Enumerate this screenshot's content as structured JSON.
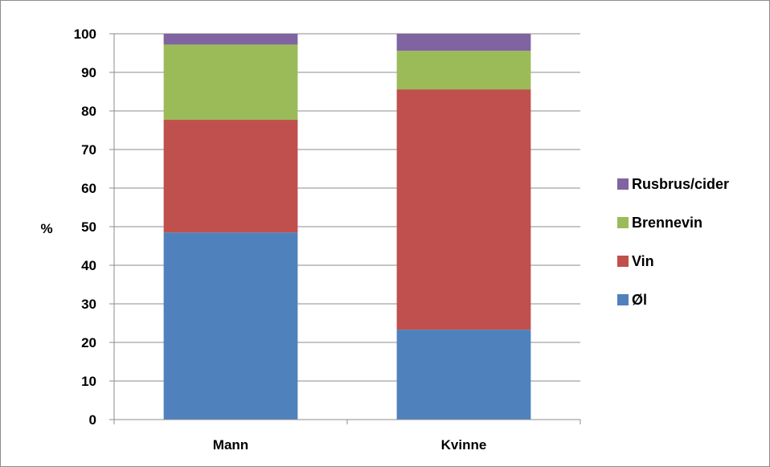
{
  "chart_data": {
    "type": "bar",
    "stacked": true,
    "categories": [
      "Mann",
      "Kvinne"
    ],
    "series": [
      {
        "name": "Øl",
        "values": [
          48.5,
          23.3
        ],
        "color": "#4f81bd"
      },
      {
        "name": "Vin",
        "values": [
          29.2,
          62.3
        ],
        "color": "#c0504d"
      },
      {
        "name": "Brennevin",
        "values": [
          19.5,
          10.0
        ],
        "color": "#9bbb59"
      },
      {
        "name": "Rusbrus/cider",
        "values": [
          2.8,
          4.4
        ],
        "color": "#8064a2"
      }
    ],
    "ylabel": "%",
    "ylim": [
      0,
      100
    ],
    "yticks": [
      0,
      10,
      20,
      30,
      40,
      50,
      60,
      70,
      80,
      90,
      100
    ],
    "grid": true,
    "legend": "right"
  }
}
